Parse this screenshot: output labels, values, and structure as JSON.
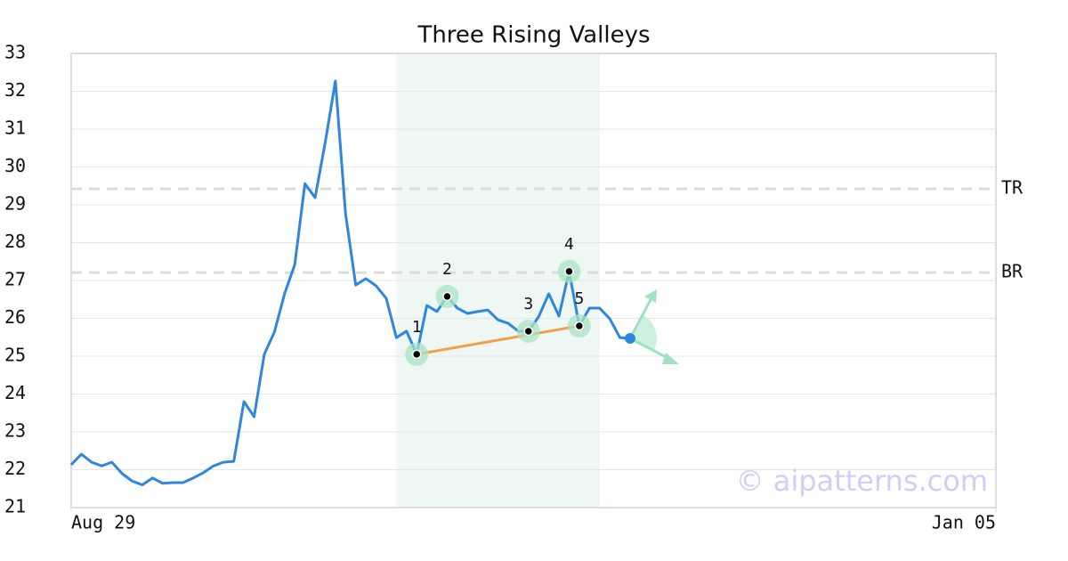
{
  "chart_data": {
    "type": "line",
    "title": "Three Rising Valleys",
    "x": [
      0,
      1,
      2,
      3,
      4,
      5,
      6,
      7,
      8,
      9,
      10,
      11,
      12,
      13,
      14,
      15,
      16,
      17,
      18,
      19,
      20,
      21,
      22,
      23,
      24,
      25,
      26,
      27,
      28,
      29,
      30,
      31,
      32,
      33,
      34,
      35,
      36,
      37,
      38,
      39,
      40,
      41,
      42,
      43,
      44,
      45,
      46,
      47,
      48,
      49,
      50,
      51,
      52,
      53,
      54,
      55
    ],
    "series": [
      {
        "color": "#2e86de",
        "values": [
          22.13,
          22.41,
          22.2,
          22.1,
          22.2,
          21.9,
          21.7,
          21.6,
          21.78,
          21.64,
          21.66,
          21.66,
          21.78,
          21.92,
          22.1,
          22.2,
          22.22,
          23.8,
          23.4,
          25.05,
          25.64,
          26.65,
          27.42,
          29.56,
          29.19,
          30.65,
          32.27,
          28.76,
          26.88,
          27.05,
          26.86,
          26.53,
          25.49,
          25.66,
          25.05,
          26.34,
          26.18,
          26.58,
          26.27,
          26.13,
          26.18,
          26.22,
          25.96,
          25.87,
          25.66,
          25.66,
          26.04,
          26.65,
          26.06,
          27.24,
          25.8,
          26.27,
          26.27,
          25.99,
          25.49,
          25.47
        ]
      }
    ],
    "xlim": [
      0,
      91
    ],
    "xticks": [
      {
        "value": 0,
        "label": "Aug 29"
      },
      {
        "value": 91,
        "label": "Jan 05"
      }
    ],
    "ylim": [
      21,
      33
    ],
    "yticks": [
      21,
      22,
      23,
      24,
      25,
      26,
      27,
      28,
      29,
      30,
      31,
      32,
      33
    ],
    "grid": true,
    "highlight": [
      32,
      52
    ],
    "points": [
      {
        "label": "1",
        "x": 34,
        "y": 25.05
      },
      {
        "label": "2",
        "x": 37,
        "y": 26.58
      },
      {
        "label": "3",
        "x": 45,
        "y": 25.66
      },
      {
        "label": "4",
        "x": 49,
        "y": 27.24
      },
      {
        "label": "5",
        "x": 50,
        "y": 25.8
      }
    ],
    "levels": [
      {
        "label": "TR",
        "value": 29.42
      },
      {
        "label": "BR",
        "value": 27.21
      }
    ],
    "watermark": "© aipatterns.com"
  }
}
